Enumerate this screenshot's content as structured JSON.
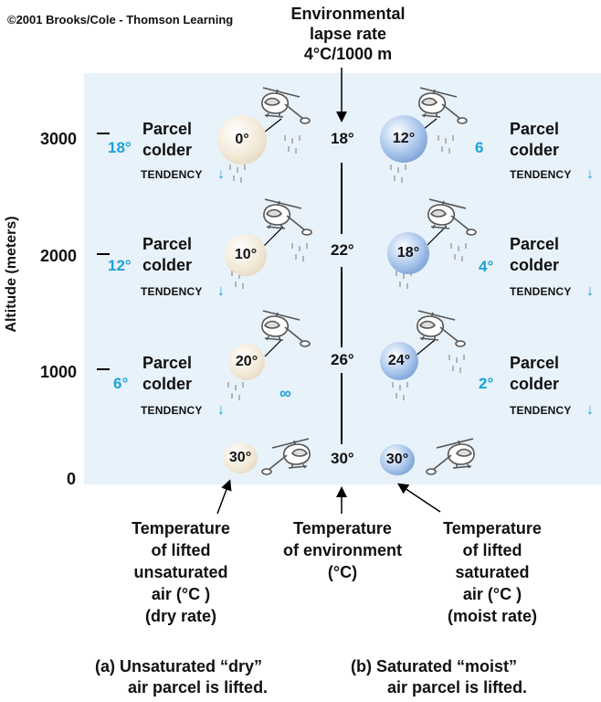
{
  "copyright": "©2001 Brooks/Cole - Thomson Learning",
  "header": {
    "lines": [
      "Environmental",
      "lapse rate",
      "4°C/1000 m"
    ]
  },
  "yaxis": {
    "label": "Altitude (meters)",
    "ticks": [
      "3000",
      "2000",
      "1000",
      "0"
    ]
  },
  "dry": {
    "diffs": [
      "18°",
      "12°",
      "6°"
    ],
    "parcel_temps": [
      "0°",
      "10°",
      "20°",
      "30°"
    ],
    "tendency": "TENDENCY",
    "parcel_lines": [
      "Parcel",
      "colder"
    ],
    "infinity": "∞"
  },
  "moist": {
    "diffs": [
      "6",
      "4°",
      "2°"
    ],
    "parcel_temps": [
      "12°",
      "18°",
      "24°",
      "30°"
    ],
    "tendency": "TENDENCY",
    "parcel_lines": [
      "Parcel",
      "colder"
    ]
  },
  "environment": {
    "temps": [
      "18°",
      "22°",
      "26°",
      "30°"
    ]
  },
  "bottom_labels": {
    "dry": [
      "Temperature",
      "of lifted",
      "unsaturated",
      "air (°C )",
      "(dry rate)"
    ],
    "env": [
      "Temperature",
      "of environment",
      "(°C)"
    ],
    "moist": [
      "Temperature",
      "of lifted",
      "saturated",
      "air (°C )",
      "(moist rate)"
    ]
  },
  "captions": {
    "a": [
      "(a) Unsaturated “dry”",
      "air parcel is lifted."
    ],
    "b": [
      "(b)  Saturated “moist”",
      "air parcel is lifted."
    ]
  },
  "colors": {
    "panel": "#e8f2fa",
    "accent": "#1aa3d9",
    "dry_parcel": "#efe3cc",
    "moist_parcel": "#6f96cf"
  }
}
